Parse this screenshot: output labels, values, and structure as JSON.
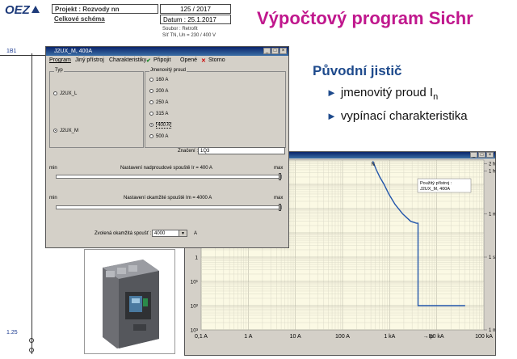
{
  "header": {
    "logo": "OEZ",
    "project_label": "Projekt : Rozvody nn",
    "project_number": "125 / 2017",
    "scheme_label": "Celkové schéma",
    "date_label": "Datum : 25.1.2017",
    "file_label": "Soubor : Retrofit",
    "network_label": "Síť TN, Un = 230 / 400 V"
  },
  "slide": {
    "title": "Výpočtový program Sichr",
    "subtitle": "Původní jistič",
    "bullets": [
      "jmenovitý proud I",
      "vypínací charakteristika"
    ],
    "bullet_subscript": "n"
  },
  "schematic": {
    "top_label": "1B1",
    "bottom_label": "1.25"
  },
  "dialog": {
    "title": "J2UX_M, 400A",
    "menu": [
      "Program",
      "Jiný přístroj",
      "Charakteristiky",
      "Připojit",
      "Opené",
      "Storno"
    ],
    "type_group": {
      "label": "Typ",
      "options": [
        "J2UX_L",
        "J2UX_M"
      ],
      "selected": "J2UX_M"
    },
    "current_group": {
      "label": "Jmenovitý proud",
      "options": [
        "160 A",
        "200 A",
        "250 A",
        "315 A",
        "400 A",
        "500 A"
      ],
      "selected": "400 A"
    },
    "designation_label": "Značení :",
    "designation_value": "1Q3",
    "overcurrent": {
      "min": "min",
      "max": "max",
      "label": "Nastavení nadproudové spouště   Ir = 400 A",
      "level": 1.0
    },
    "instant": {
      "min": "min",
      "max": "max",
      "label": "Nastavení okamžité spouště   Im = 4000 A",
      "level": 1.0
    },
    "instant_select_label": "Zvolená okamžitá spoušť :",
    "instant_select_value": "4000",
    "instant_unit": "A"
  },
  "chart_window": {
    "legend_line1": "Použitý přístroj :",
    "legend_line2": "J2UX_M, 400A"
  },
  "chart_data": {
    "type": "line",
    "xlabel": "Ip",
    "x_scale": "log",
    "y_scale": "log",
    "x_ticks": [
      "0,1 A",
      "1 A",
      "10 A",
      "100 A",
      "1 kA",
      "10 kA",
      "100 kA"
    ],
    "y_ticks_left": [
      "10³",
      "10²",
      "10¹",
      "1",
      "10",
      "10²",
      "10³"
    ],
    "y_ticks_right": [
      "2 hod.",
      "1 hod.",
      "1 min.",
      "1 s",
      "1 ms"
    ],
    "top_marker": "N",
    "series": [
      {
        "x": [
          440,
          520,
          620,
          760,
          960,
          1300,
          1900,
          2800,
          3700,
          4000,
          4000,
          4000,
          40000
        ],
        "y": [
          9000,
          4000,
          2000,
          1000,
          400,
          150,
          60,
          30,
          25,
          25,
          0.02,
          0.01,
          0.01
        ]
      }
    ],
    "line_color": "#2255aa"
  }
}
